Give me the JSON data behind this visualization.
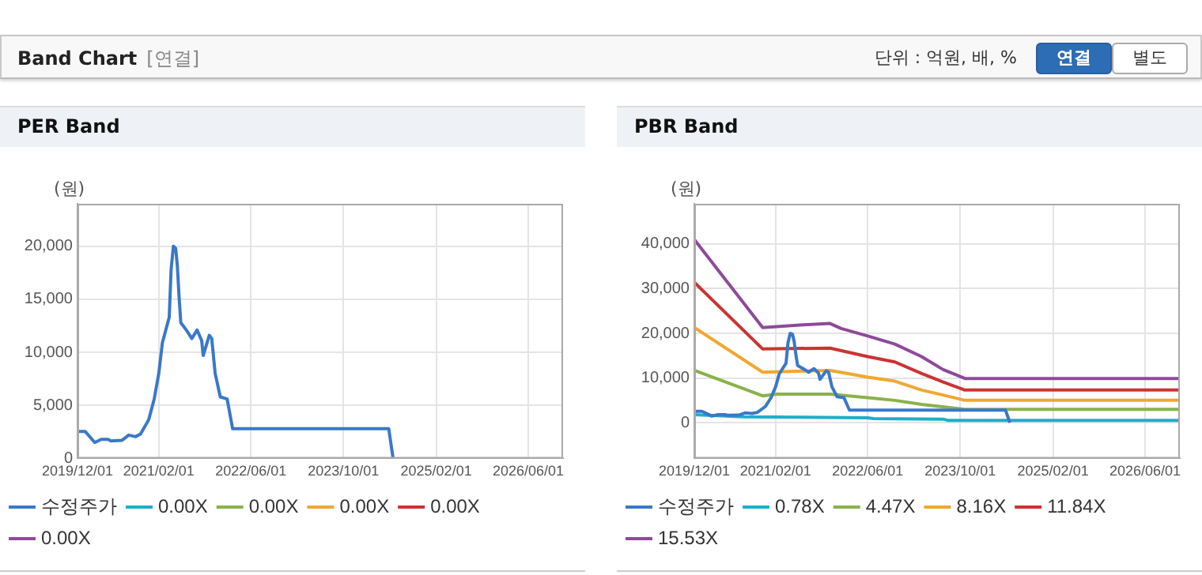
{
  "chart_data": [
    {
      "type": "other",
      "title": "Band Chart",
      "annotations": [
        "[연결]",
        "단위 : 억원, 배, %",
        "연결",
        "별도"
      ]
    },
    {
      "type": "line",
      "title": "PER Band",
      "ylabel": "(원)",
      "xlim": [
        "2019-12-01",
        "2026-12-01"
      ],
      "ylim": [
        0,
        24000
      ],
      "yticks": [
        0,
        {
          "value": 5000,
          "label": "5,000"
        },
        {
          "value": 10000,
          "label": "10,000"
        },
        {
          "value": 15000,
          "label": "15,000"
        },
        {
          "value": 20000,
          "label": "20,000"
        }
      ],
      "xticks": [
        {
          "value": "2019-12-01",
          "label": "2019/12/01"
        },
        {
          "value": "2021-02-01",
          "label": "2021/02/01"
        },
        {
          "value": "2022-06-01",
          "label": "2022/06/01"
        },
        {
          "value": "2023-10-01",
          "label": "2023/10/01"
        },
        {
          "value": "2025-02-01",
          "label": "2025/02/01"
        },
        {
          "value": "2026-06-01",
          "label": "2026/06/01"
        }
      ],
      "grid": true,
      "legend": "bottom",
      "marker": "none",
      "line_style": "solid",
      "series": [
        {
          "name": "수정주가",
          "color": "#3a78c9",
          "x": [
            "2019-12-01",
            "2020-01-10",
            "2020-03-01",
            "2020-04-04",
            "2020-05-10",
            "2020-05-25",
            "2020-07-21",
            "2020-08-27",
            "2020-10-01",
            "2020-10-28",
            "2020-12-10",
            "2021-01-08",
            "2021-02-01",
            "2021-02-20",
            "2021-03-28",
            "2021-04-07",
            "2021-04-19",
            "2021-05-01",
            "2021-05-10",
            "2021-05-19",
            "2021-05-28",
            "2021-06-26",
            "2021-07-25",
            "2021-08-22",
            "2021-09-15",
            "2021-09-23",
            "2021-10-25",
            "2021-11-07",
            "2021-11-25",
            "2021-12-22",
            "2022-01-27",
            "2022-02-25",
            "2024-05-27",
            "2024-06-19"
          ],
          "values": [
            2550,
            2550,
            1500,
            1800,
            1800,
            1650,
            1700,
            2200,
            2050,
            2300,
            3650,
            5600,
            8000,
            10900,
            13300,
            17800,
            20000,
            19800,
            18100,
            15200,
            12800,
            12100,
            11300,
            12100,
            11100,
            9700,
            11600,
            11300,
            8000,
            5800,
            5600,
            2800,
            2800,
            0
          ]
        },
        {
          "name": "0.00X",
          "color": "#1cb0c8"
        },
        {
          "name": "0.00X",
          "color": "#8ab24a"
        },
        {
          "name": "0.00X",
          "color": "#f0a830"
        },
        {
          "name": "0.00X",
          "color": "#cc3333"
        },
        {
          "name": "0.00X",
          "color": "#8e4a9a"
        }
      ]
    },
    {
      "type": "line",
      "title": "PBR Band",
      "ylabel": "(원)",
      "xlim": [
        "2019-12-01",
        "2026-12-01"
      ],
      "ylim": [
        -8000,
        49000
      ],
      "yticks": [
        0,
        {
          "value": 10000,
          "label": "10,000"
        },
        {
          "value": 20000,
          "label": "20,000"
        },
        {
          "value": 30000,
          "label": "30,000"
        },
        {
          "value": 40000,
          "label": "40,000"
        }
      ],
      "xticks": [
        {
          "value": "2019-12-01",
          "label": "2019/12/01"
        },
        {
          "value": "2021-02-01",
          "label": "2021/02/01"
        },
        {
          "value": "2022-06-01",
          "label": "2022/06/01"
        },
        {
          "value": "2023-10-01",
          "label": "2023/10/01"
        },
        {
          "value": "2025-02-01",
          "label": "2025/02/01"
        },
        {
          "value": "2026-06-01",
          "label": "2026/06/01"
        }
      ],
      "grid": true,
      "legend": "bottom",
      "marker": "none",
      "line_style": "solid",
      "series": [
        {
          "name": "수정주가",
          "color": "#3a78c9",
          "x": [
            "2019-12-01",
            "2020-01-10",
            "2020-03-01",
            "2020-04-04",
            "2020-05-10",
            "2020-05-25",
            "2020-07-21",
            "2020-08-27",
            "2020-10-01",
            "2020-10-28",
            "2020-12-10",
            "2021-01-08",
            "2021-02-01",
            "2021-02-20",
            "2021-03-28",
            "2021-04-07",
            "2021-04-19",
            "2021-05-01",
            "2021-05-10",
            "2021-05-19",
            "2021-05-28",
            "2021-06-26",
            "2021-07-25",
            "2021-08-22",
            "2021-09-15",
            "2021-09-23",
            "2021-10-25",
            "2021-11-07",
            "2021-11-25",
            "2021-12-22",
            "2022-01-27",
            "2022-02-25",
            "2024-05-27",
            "2024-06-19"
          ],
          "values": [
            2550,
            2550,
            1500,
            1800,
            1800,
            1650,
            1700,
            2200,
            2050,
            2300,
            3650,
            5600,
            8000,
            10900,
            13300,
            17800,
            20000,
            19800,
            18100,
            15200,
            12800,
            12100,
            11300,
            12100,
            11100,
            9700,
            11600,
            11300,
            8000,
            5800,
            5600,
            2800,
            2800,
            0
          ]
        },
        {
          "name": "0.78X",
          "color": "#1cb0c8",
          "x": [
            "2019-12-01",
            "2020-08-18",
            "2022-06-01",
            "2022-07-01",
            "2023-07-03",
            "2023-07-31",
            "2026-12-01"
          ],
          "values": [
            1800,
            1300,
            1100,
            900,
            800,
            500,
            500
          ]
        },
        {
          "name": "4.47X",
          "color": "#8ab24a",
          "x": [
            "2019-12-01",
            "2020-11-25",
            "2021-02-08",
            "2021-11-15",
            "2022-06-01",
            "2022-10-22",
            "2023-03-12",
            "2023-10-26",
            "2026-12-01"
          ],
          "values": [
            11700,
            6000,
            6400,
            6400,
            5600,
            5000,
            4100,
            3000,
            3000
          ]
        },
        {
          "name": "8.16X",
          "color": "#f0a830",
          "x": [
            "2019-12-01",
            "2020-11-25",
            "2021-11-15",
            "2022-06-01",
            "2022-10-22",
            "2023-03-12",
            "2023-07-03",
            "2023-10-26",
            "2026-12-01"
          ],
          "values": [
            21300,
            11300,
            11700,
            10200,
            9300,
            7300,
            6200,
            5000,
            5000
          ]
        },
        {
          "name": "11.84X",
          "color": "#cc3333",
          "x": [
            "2019-12-01",
            "2020-11-25",
            "2021-11-15",
            "2022-06-01",
            "2022-10-22",
            "2023-03-12",
            "2023-07-03",
            "2023-10-26",
            "2026-12-01"
          ],
          "values": [
            31400,
            16500,
            16700,
            14800,
            13600,
            11000,
            9100,
            7300,
            7300
          ]
        },
        {
          "name": "15.53X",
          "color": "#8e4a9a",
          "x": [
            "2019-12-01",
            "2020-11-25",
            "2021-02-08",
            "2021-06-26",
            "2021-11-15",
            "2022-01-12",
            "2022-06-01",
            "2022-10-22",
            "2023-03-12",
            "2023-07-03",
            "2023-10-26",
            "2026-12-01"
          ],
          "values": [
            41000,
            21300,
            21500,
            21900,
            22200,
            21100,
            19400,
            17600,
            14800,
            11900,
            9900,
            9900
          ]
        }
      ]
    }
  ]
}
